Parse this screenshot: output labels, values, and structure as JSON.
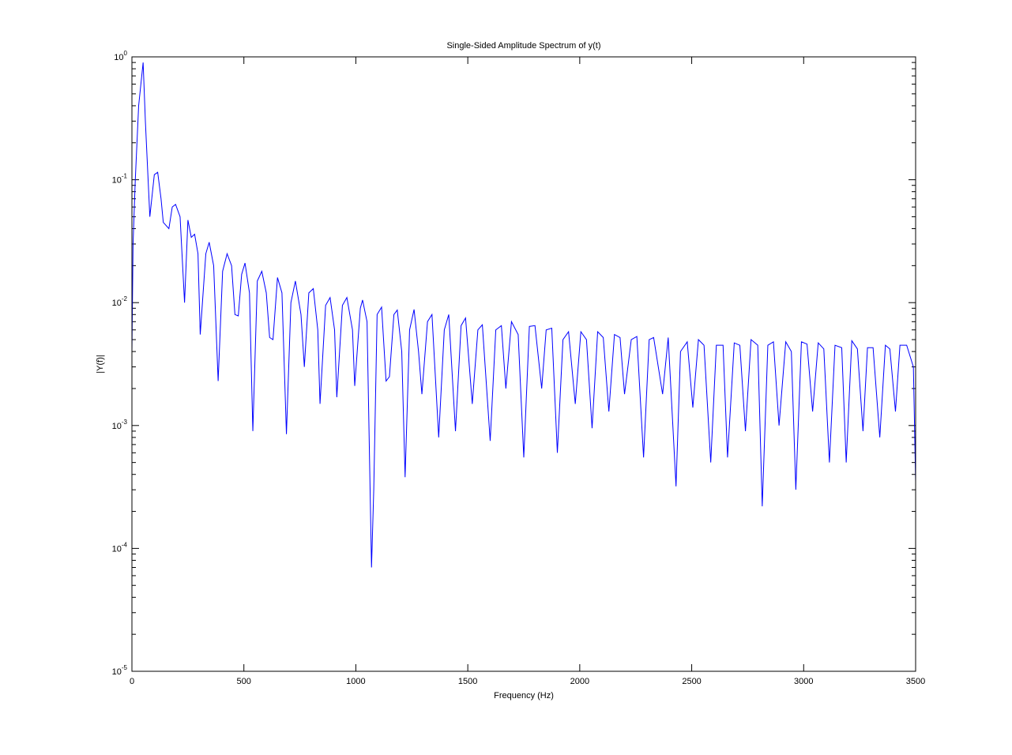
{
  "chart_data": {
    "type": "line",
    "title": "Single-Sided Amplitude Spectrum of y(t)",
    "xlabel": "Frequency (Hz)",
    "ylabel": "|Y(f)|",
    "ylog": true,
    "grid": false,
    "color": "#0000ff",
    "xlim": [
      0,
      3500
    ],
    "xticks": [
      0,
      500,
      1000,
      1500,
      2000,
      2500,
      3000,
      3500
    ],
    "ylim": [
      1e-05,
      1
    ],
    "yticks": [
      {
        "value": 1e-05,
        "label": "10",
        "exponent": "-5"
      },
      {
        "value": 0.0001,
        "label": "10",
        "exponent": "-4"
      },
      {
        "value": 0.001,
        "label": "10",
        "exponent": "-3"
      },
      {
        "value": 0.01,
        "label": "10",
        "exponent": "-2"
      },
      {
        "value": 0.1,
        "label": "10",
        "exponent": "-1"
      },
      {
        "value": 1,
        "label": "10",
        "exponent": "0"
      }
    ],
    "x": [
      0,
      5,
      15,
      30,
      50,
      60,
      80,
      100,
      115,
      130,
      140,
      165,
      180,
      195,
      215,
      235,
      250,
      265,
      280,
      295,
      305,
      330,
      345,
      365,
      385,
      405,
      425,
      445,
      460,
      475,
      490,
      505,
      525,
      540,
      560,
      580,
      600,
      615,
      630,
      650,
      670,
      690,
      710,
      730,
      755,
      770,
      790,
      810,
      830,
      840,
      865,
      885,
      905,
      915,
      940,
      960,
      985,
      995,
      1020,
      1030,
      1050,
      1070,
      1080,
      1095,
      1115,
      1135,
      1150,
      1170,
      1185,
      1205,
      1220,
      1240,
      1260,
      1280,
      1295,
      1320,
      1340,
      1370,
      1395,
      1415,
      1445,
      1470,
      1490,
      1520,
      1545,
      1565,
      1600,
      1625,
      1650,
      1670,
      1695,
      1725,
      1750,
      1775,
      1800,
      1830,
      1850,
      1875,
      1900,
      1925,
      1950,
      1980,
      2005,
      2030,
      2055,
      2080,
      2105,
      2130,
      2155,
      2180,
      2200,
      2230,
      2255,
      2285,
      2310,
      2330,
      2370,
      2395,
      2430,
      2450,
      2480,
      2505,
      2530,
      2555,
      2585,
      2610,
      2640,
      2660,
      2690,
      2715,
      2740,
      2765,
      2795,
      2815,
      2840,
      2865,
      2890,
      2920,
      2945,
      2965,
      2990,
      3015,
      3040,
      3065,
      3090,
      3115,
      3140,
      3170,
      3190,
      3215,
      3240,
      3265,
      3285,
      3310,
      3340,
      3365,
      3385,
      3410,
      3430,
      3460,
      3490,
      3500
    ],
    "values": [
      0.004,
      0.03,
      0.1,
      0.4,
      0.9,
      0.3,
      0.05,
      0.11,
      0.115,
      0.07,
      0.045,
      0.04,
      0.06,
      0.063,
      0.05,
      0.01,
      0.047,
      0.034,
      0.036,
      0.025,
      0.0055,
      0.025,
      0.031,
      0.02,
      0.0023,
      0.018,
      0.025,
      0.02,
      0.008,
      0.0078,
      0.017,
      0.021,
      0.012,
      0.0009,
      0.015,
      0.018,
      0.012,
      0.0052,
      0.005,
      0.016,
      0.012,
      0.00085,
      0.01,
      0.015,
      0.008,
      0.003,
      0.012,
      0.013,
      0.006,
      0.0015,
      0.0095,
      0.011,
      0.006,
      0.0017,
      0.0095,
      0.011,
      0.006,
      0.0021,
      0.009,
      0.0105,
      0.007,
      7e-05,
      0.0003,
      0.008,
      0.0092,
      0.0023,
      0.0025,
      0.008,
      0.0087,
      0.004,
      0.00038,
      0.006,
      0.0088,
      0.004,
      0.0018,
      0.007,
      0.008,
      0.0008,
      0.006,
      0.008,
      0.0009,
      0.0065,
      0.0075,
      0.0015,
      0.006,
      0.0066,
      0.00075,
      0.006,
      0.0065,
      0.002,
      0.007,
      0.0055,
      0.00055,
      0.0064,
      0.0065,
      0.002,
      0.006,
      0.0062,
      0.0006,
      0.005,
      0.0058,
      0.0015,
      0.0058,
      0.005,
      0.00095,
      0.0058,
      0.0052,
      0.0013,
      0.0055,
      0.0052,
      0.0018,
      0.005,
      0.0053,
      0.00055,
      0.005,
      0.0052,
      0.0018,
      0.0052,
      0.00032,
      0.004,
      0.0048,
      0.0014,
      0.005,
      0.0045,
      0.0005,
      0.0045,
      0.0045,
      0.00055,
      0.0047,
      0.0045,
      0.0009,
      0.005,
      0.0045,
      0.00022,
      0.0045,
      0.0048,
      0.001,
      0.0048,
      0.004,
      0.0003,
      0.0048,
      0.0046,
      0.0013,
      0.0047,
      0.0042,
      0.0005,
      0.0045,
      0.0043,
      0.0005,
      0.0049,
      0.0042,
      0.0009,
      0.0043,
      0.0043,
      0.0008,
      0.0045,
      0.0042,
      0.0013,
      0.0045,
      0.0045,
      0.003,
      0.00035
    ]
  }
}
